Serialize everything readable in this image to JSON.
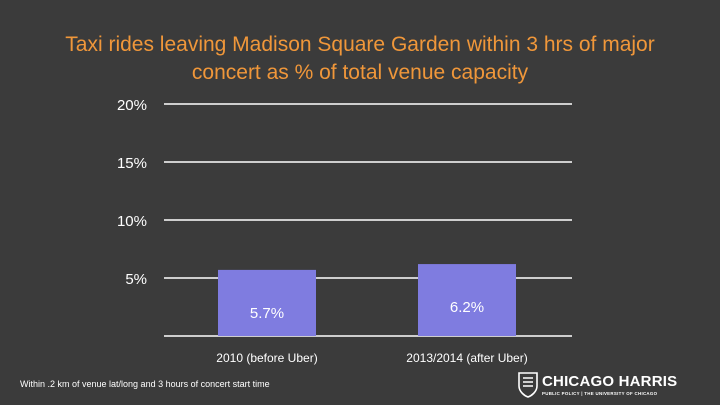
{
  "chart_data": {
    "type": "bar",
    "title": "Taxi rides leaving Madison Square Garden within 3 hrs of major concert as % of total venue capacity",
    "categories": [
      "2010 (before Uber)",
      "2013/2014 (after Uber)"
    ],
    "values": [
      5.7,
      6.2
    ],
    "value_labels": [
      "5.7%",
      "6.2%"
    ],
    "yticks": [
      5,
      10,
      15,
      20
    ],
    "ytick_labels": [
      "5%",
      "10%",
      "15%",
      "20%"
    ],
    "ylim": [
      0,
      20
    ],
    "xlabel": "",
    "ylabel": "",
    "grid": true,
    "bar_color": "#7f7ce0"
  },
  "footnote": "Within .2 km of venue lat/long and 3 hours of concert start time",
  "logo": {
    "name": "CHICAGO HARRIS",
    "tagline": "PUBLIC POLICY | THE UNIVERSITY OF CHICAGO"
  }
}
